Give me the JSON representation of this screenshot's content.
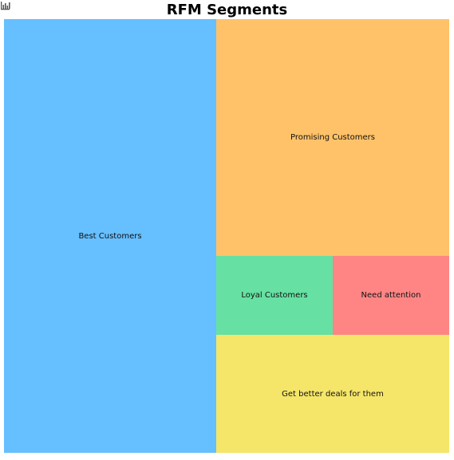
{
  "toolbar": {
    "icon": "bar-chart-icon"
  },
  "chart_data": {
    "type": "treemap",
    "title": "RFM Segments",
    "segments": [
      {
        "label": "Best Customers",
        "value": 47.7,
        "color": "#66bfff"
      },
      {
        "label": "Promising Customers",
        "value": 28.7,
        "color": "#ffc269"
      },
      {
        "label": "Loyal Customers",
        "value": 4.7,
        "color": "#66e1a3"
      },
      {
        "label": "Need attention",
        "value": 4.7,
        "color": "#ff8585"
      },
      {
        "label": "Get better deals for them",
        "value": 14.2,
        "color": "#f5e66a"
      }
    ]
  }
}
